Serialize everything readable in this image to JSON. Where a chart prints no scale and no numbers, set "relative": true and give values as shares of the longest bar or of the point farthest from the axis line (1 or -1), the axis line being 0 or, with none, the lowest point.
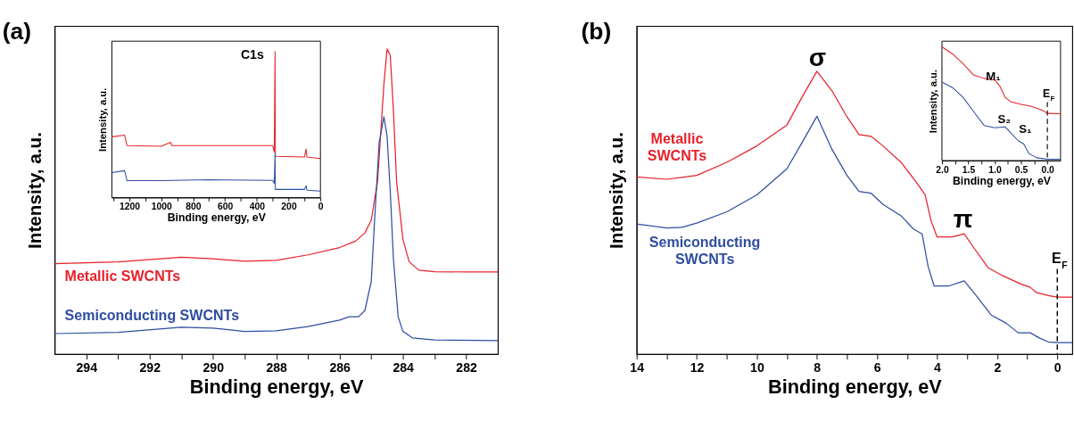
{
  "chart_data": [
    {
      "type": "line",
      "title": "(a)",
      "xlabel": "Binding energy, eV",
      "ylabel": "Intensity, a.u.",
      "relative": true,
      "tick_labels": "x",
      "grid": false,
      "legend": false,
      "line_style": "solid",
      "marker": "none",
      "xlim": [
        295,
        281
      ],
      "xticks": [
        294,
        292,
        290,
        288,
        286,
        284,
        282,
        {
          "value": 293,
          "label": null
        },
        {
          "value": 291,
          "label": null
        },
        {
          "value": 289,
          "label": null
        },
        {
          "value": 287,
          "label": null
        },
        {
          "value": 285,
          "label": null
        },
        {
          "value": 283,
          "label": null
        }
      ],
      "series": [
        {
          "name": "Metallic SWCNTs",
          "color": "#e8202a",
          "x": [
            295,
            293,
            291,
            290,
            289,
            288,
            287,
            286,
            285.5,
            285.2,
            285,
            284.8,
            284.6,
            284.5,
            284.4,
            284.3,
            284.2,
            284,
            283.8,
            283.5,
            283,
            282,
            281
          ],
          "values": [
            0.296,
            0.302,
            0.317,
            0.312,
            0.304,
            0.307,
            0.325,
            0.349,
            0.37,
            0.397,
            0.439,
            0.566,
            0.884,
            1.0,
            0.979,
            0.799,
            0.566,
            0.376,
            0.302,
            0.275,
            0.27,
            0.269,
            0.269
          ]
        },
        {
          "name": "Semiconducting SWCNTs",
          "color": "#2e4da0",
          "x": [
            295,
            293,
            291,
            290,
            289,
            288,
            287,
            286,
            285.7,
            285.4,
            285.2,
            285,
            284.9,
            284.75,
            284.6,
            284.5,
            284.4,
            284.3,
            284.15,
            284,
            283.7,
            283,
            281
          ],
          "values": [
            0.067,
            0.071,
            0.088,
            0.085,
            0.074,
            0.076,
            0.09,
            0.111,
            0.122,
            0.122,
            0.143,
            0.238,
            0.429,
            0.693,
            0.778,
            0.714,
            0.534,
            0.312,
            0.122,
            0.074,
            0.053,
            0.046,
            0.044
          ]
        }
      ]
    },
    {
      "type": "line",
      "xlabel": "Binding energy, eV",
      "ylabel": "Intensity, a.u.",
      "relative": true,
      "tick_labels": "x",
      "grid": false,
      "legend": false,
      "line_style": "solid",
      "marker": "none",
      "xlim": [
        1310,
        0
      ],
      "xticks": [
        1200,
        1000,
        800,
        600,
        400,
        200,
        0,
        {
          "value": 1300,
          "label": null
        },
        {
          "value": 1100,
          "label": null
        },
        {
          "value": 900,
          "label": null
        },
        {
          "value": 700,
          "label": null
        },
        {
          "value": 500,
          "label": null
        },
        {
          "value": 300,
          "label": null
        },
        {
          "value": 100,
          "label": null
        }
      ],
      "annotations": [
        "C1s"
      ],
      "series": [
        {
          "color": "#e8202a",
          "x": [
            1310,
            1230,
            1215,
            1000,
            940,
            935,
            600,
            300,
            290,
            285,
            283,
            100,
            90,
            85,
            0
          ],
          "values": [
            0.416,
            0.427,
            0.356,
            0.351,
            0.378,
            0.356,
            0.356,
            0.356,
            0.311,
            1.0,
            0.282,
            0.278,
            0.333,
            0.278,
            0.267
          ]
        },
        {
          "color": "#2e4da0",
          "x": [
            1310,
            1230,
            1215,
            1000,
            700,
            300,
            290,
            285,
            283,
            100,
            90,
            85,
            0
          ],
          "values": [
            0.171,
            0.184,
            0.116,
            0.116,
            0.122,
            0.118,
            0.096,
            0.304,
            0.056,
            0.056,
            0.082,
            0.051,
            0.044
          ]
        }
      ]
    },
    {
      "type": "line",
      "title": "(b)",
      "xlabel": "Binding energy, eV",
      "ylabel": "Intensity, a.u.",
      "relative": true,
      "tick_labels": "x",
      "grid": false,
      "legend": false,
      "line_style": "solid",
      "marker": "none",
      "xlim": [
        14,
        -0.5
      ],
      "xticks": [
        14,
        12,
        10,
        8,
        6,
        4,
        2,
        0,
        {
          "value": 13,
          "label": null
        },
        {
          "value": 11,
          "label": null
        },
        {
          "value": 9,
          "label": null
        },
        {
          "value": 7,
          "label": null
        },
        {
          "value": 5,
          "label": null
        },
        {
          "value": 3,
          "label": null
        },
        {
          "value": 1,
          "label": null
        }
      ],
      "annotations": [
        "σ",
        "π"
      ],
      "ref_lines": [
        {
          "axis": "x",
          "value": 0,
          "label": "E$_{F}$",
          "line_style": "dashed"
        }
      ],
      "series": [
        {
          "name": "Metallic SWCNTs",
          "color": "#e8202a",
          "x": [
            14,
            13,
            12,
            11,
            10,
            9,
            8.5,
            8,
            7.5,
            7,
            6.6,
            6.2,
            5.8,
            5.2,
            4.7,
            4.4,
            4.2,
            4.0,
            3.5,
            3.1,
            2.8,
            2.3,
            1.8,
            1.2,
            0.9,
            0.7,
            0.3,
            0,
            -0.5
          ],
          "values": [
            0.626,
            0.618,
            0.632,
            0.678,
            0.736,
            0.81,
            0.908,
            1.0,
            0.931,
            0.839,
            0.776,
            0.77,
            0.736,
            0.678,
            0.609,
            0.563,
            0.471,
            0.414,
            0.414,
            0.425,
            0.379,
            0.305,
            0.276,
            0.247,
            0.236,
            0.218,
            0.207,
            0.201,
            0.201
          ]
        },
        {
          "name": "Semiconducting SWCNTs",
          "color": "#2e4da0",
          "x": [
            14,
            13,
            12.5,
            12,
            11,
            10,
            9,
            8.5,
            8,
            7.5,
            7,
            6.6,
            6.2,
            5.8,
            5.2,
            4.8,
            4.5,
            4.3,
            4.1,
            3.6,
            3.1,
            2.7,
            2.2,
            1.7,
            1.3,
            0.9,
            0.6,
            0.3,
            0,
            -0.5
          ],
          "values": [
            0.46,
            0.446,
            0.448,
            0.463,
            0.503,
            0.563,
            0.655,
            0.747,
            0.841,
            0.724,
            0.632,
            0.575,
            0.569,
            0.529,
            0.489,
            0.443,
            0.425,
            0.31,
            0.241,
            0.241,
            0.259,
            0.207,
            0.138,
            0.109,
            0.075,
            0.075,
            0.057,
            0.043,
            0.04,
            0.04
          ]
        }
      ]
    },
    {
      "type": "line",
      "xlabel": "Binding energy, eV",
      "ylabel": "Intensity, a.u.",
      "relative": true,
      "tick_labels": "x",
      "grid": false,
      "legend": false,
      "line_style": "solid",
      "marker": "none",
      "xlim": [
        2.0,
        -0.25
      ],
      "xticks": [
        {
          "value": 2.0,
          "label": "2.0"
        },
        {
          "value": 1.5,
          "label": "1.5"
        },
        {
          "value": 1.0,
          "label": "1.0"
        },
        {
          "value": 0.5,
          "label": "0.5"
        },
        {
          "value": 0.0,
          "label": "0.0"
        },
        {
          "value": 1.75,
          "label": null
        },
        {
          "value": 1.25,
          "label": null
        },
        {
          "value": 0.75,
          "label": null
        },
        {
          "value": 0.25,
          "label": null
        }
      ],
      "annotations": [
        "M₁",
        "S₂",
        "S₁"
      ],
      "ref_lines": [
        {
          "axis": "x",
          "value": 0,
          "label": "E$_{F}$",
          "line_style": "dashed"
        }
      ],
      "series": [
        {
          "color": "#e8202a",
          "x": [
            2.0,
            1.8,
            1.6,
            1.4,
            1.2,
            1.0,
            0.9,
            0.8,
            0.7,
            0.5,
            0.3,
            0.1,
            0.0,
            -0.25
          ],
          "values": [
            1.0,
            0.938,
            0.852,
            0.753,
            0.723,
            0.709,
            0.654,
            0.556,
            0.519,
            0.494,
            0.477,
            0.444,
            0.415,
            0.412
          ]
        },
        {
          "color": "#2e4da0",
          "x": [
            2.0,
            1.8,
            1.6,
            1.4,
            1.2,
            1.0,
            0.8,
            0.7,
            0.55,
            0.45,
            0.35,
            0.2,
            0.0,
            -0.25
          ],
          "values": [
            0.691,
            0.642,
            0.556,
            0.432,
            0.309,
            0.289,
            0.296,
            0.247,
            0.173,
            0.148,
            0.062,
            0.025,
            0.012,
            0.012
          ]
        }
      ]
    }
  ]
}
